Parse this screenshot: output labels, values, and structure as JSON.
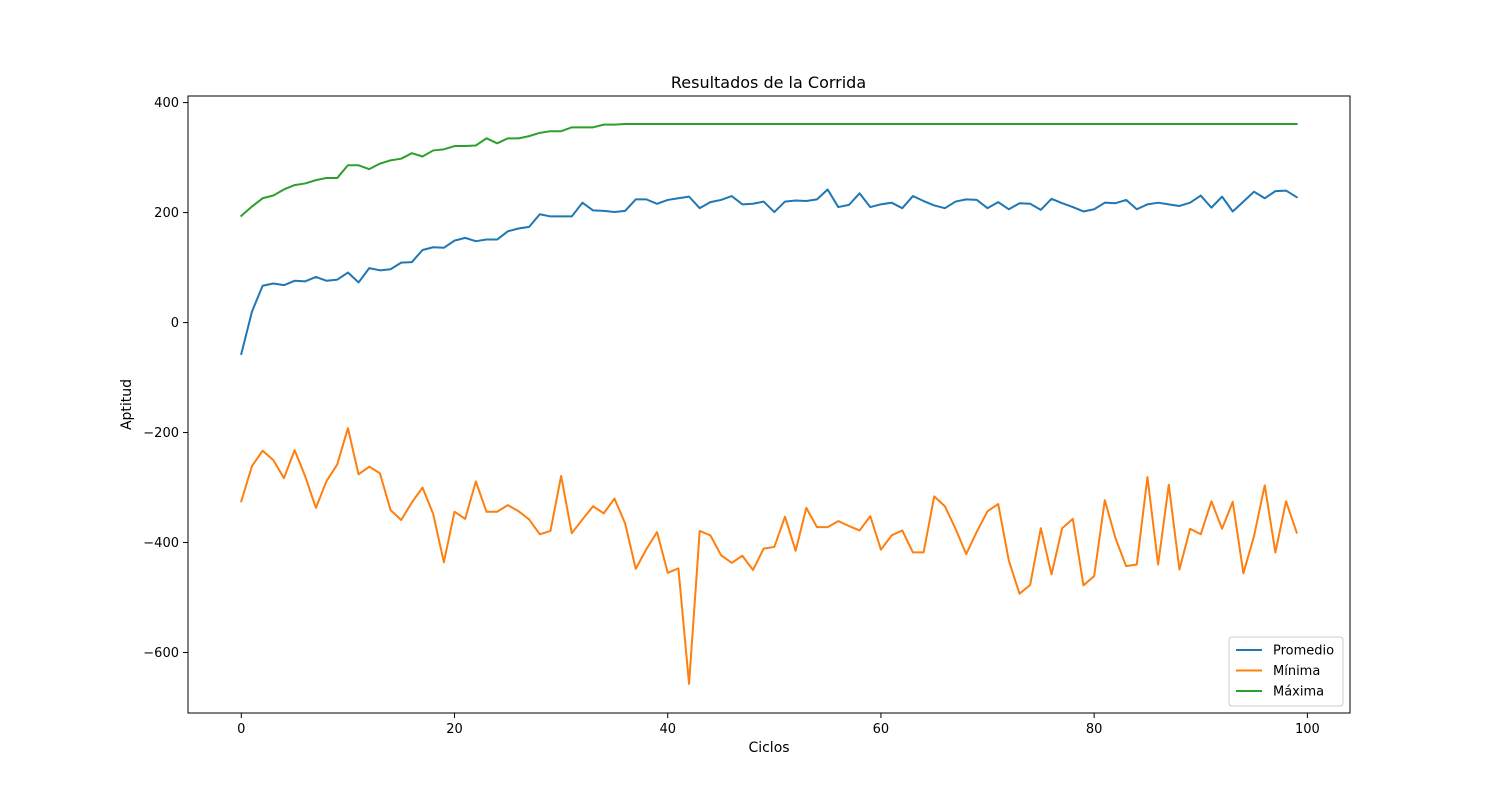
{
  "chart_data": {
    "type": "line",
    "title": "Resultados de la Corrida",
    "xlabel": "Ciclos",
    "ylabel": "Aptitud",
    "xlim": [
      -5,
      104
    ],
    "ylim": [
      -710,
      412
    ],
    "xticks": [
      0,
      20,
      40,
      60,
      80,
      100
    ],
    "yticks": [
      -600,
      -400,
      -200,
      0,
      200,
      400
    ],
    "ytick_labels": [
      "−600",
      "−400",
      "−200",
      "0",
      "200",
      "400"
    ],
    "grid": false,
    "legend_position": "lower right",
    "series": [
      {
        "name": "Promedio",
        "color": "#1f77b4",
        "values": [
          -57,
          20,
          67,
          71,
          68,
          76,
          75,
          83,
          76,
          78,
          91,
          73,
          99,
          95,
          97,
          109,
          110,
          132,
          137,
          136,
          149,
          154,
          148,
          151,
          151,
          166,
          171,
          174,
          197,
          193,
          193,
          193,
          218,
          204,
          203,
          201,
          203,
          224,
          224,
          216,
          223,
          226,
          229,
          208,
          219,
          223,
          230,
          215,
          216,
          220,
          201,
          220,
          222,
          221,
          224,
          242,
          210,
          214,
          235,
          210,
          215,
          218,
          208,
          230,
          221,
          213,
          208,
          220,
          224,
          223,
          208,
          219,
          206,
          217,
          216,
          205,
          225,
          217,
          210,
          202,
          206,
          218,
          217,
          223,
          206,
          215,
          218,
          215,
          212,
          218,
          231,
          209,
          229,
          202,
          220,
          238,
          226,
          239,
          240,
          228
        ]
      },
      {
        "name": "Mínima",
        "color": "#ff7f0e",
        "values": [
          -325,
          -261,
          -233,
          -250,
          -283,
          -232,
          -280,
          -337,
          -288,
          -258,
          -192,
          -276,
          -262,
          -274,
          -341,
          -359,
          -327,
          -300,
          -348,
          -436,
          -344,
          -357,
          -289,
          -344,
          -344,
          -332,
          -343,
          -358,
          -385,
          -379,
          -279,
          -383,
          -358,
          -334,
          -347,
          -320,
          -365,
          -448,
          -412,
          -381,
          -455,
          -447,
          -657,
          -379,
          -387,
          -423,
          -437,
          -424,
          -450,
          -411,
          -408,
          -353,
          -415,
          -337,
          -372,
          -372,
          -361,
          -370,
          -378,
          -352,
          -413,
          -387,
          -378,
          -418,
          -418,
          -316,
          -334,
          -375,
          -421,
          -380,
          -343,
          -330,
          -433,
          -493,
          -477,
          -374,
          -458,
          -374,
          -357,
          -478,
          -461,
          -323,
          -392,
          -443,
          -440,
          -281,
          -440,
          -295,
          -449,
          -375,
          -385,
          -325,
          -375,
          -326,
          -456,
          -388,
          -296,
          -418,
          -325,
          -382
        ]
      },
      {
        "name": "Máxima",
        "color": "#2ca02c",
        "values": [
          194,
          211,
          226,
          231,
          242,
          250,
          253,
          259,
          263,
          263,
          286,
          286,
          279,
          289,
          295,
          298,
          308,
          302,
          313,
          315,
          321,
          321,
          322,
          335,
          326,
          335,
          335,
          339,
          345,
          348,
          348,
          355,
          355,
          355,
          360,
          360,
          361,
          361,
          361,
          361,
          361,
          361,
          361,
          361,
          361,
          361,
          361,
          361,
          361,
          361,
          361,
          361,
          361,
          361,
          361,
          361,
          361,
          361,
          361,
          361,
          361,
          361,
          361,
          361,
          361,
          361,
          361,
          361,
          361,
          361,
          361,
          361,
          361,
          361,
          361,
          361,
          361,
          361,
          361,
          361,
          361,
          361,
          361,
          361,
          361,
          361,
          361,
          361,
          361,
          361,
          361,
          361,
          361,
          361,
          361,
          361,
          361,
          361,
          361,
          361
        ]
      }
    ]
  }
}
